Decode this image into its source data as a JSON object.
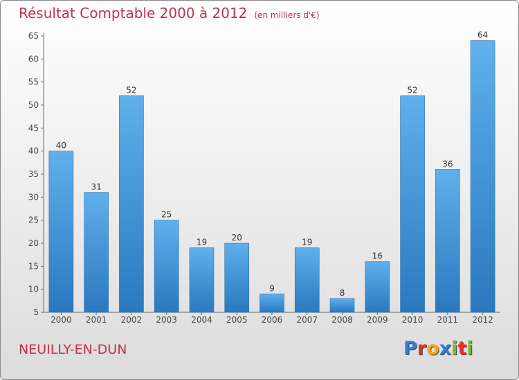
{
  "chart_data": {
    "type": "bar",
    "title": "Résultat Comptable 2000 à 2012",
    "unit_note": "(en milliers d'€)",
    "categories": [
      "2000",
      "2001",
      "2002",
      "2003",
      "2004",
      "2005",
      "2006",
      "2007",
      "2008",
      "2009",
      "2010",
      "2011",
      "2012"
    ],
    "values": [
      40,
      31,
      52,
      25,
      19,
      20,
      9,
      19,
      8,
      16,
      52,
      36,
      64
    ],
    "ylim": [
      5,
      65
    ],
    "yticks": [
      5,
      10,
      15,
      20,
      25,
      30,
      35,
      40,
      45,
      50,
      55,
      60,
      65
    ],
    "xlabel": "",
    "ylabel": "",
    "grid": false,
    "bar_color": "#3a8fd6"
  },
  "footer": {
    "town": "NEUILLY-EN-DUN",
    "logo_letters": [
      "P",
      "r",
      "o",
      "x",
      "i",
      "t",
      "i"
    ],
    "logo_colors": [
      "#2f7fcf",
      "#e0332d",
      "#f2a91a",
      "#2f7fcf",
      "#7cb82f",
      "#e0332d",
      "#7cb82f"
    ]
  }
}
